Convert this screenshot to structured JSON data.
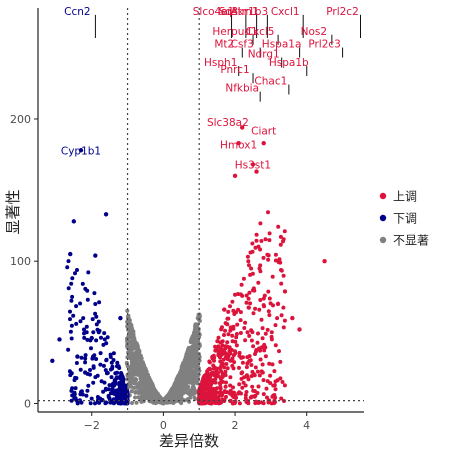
{
  "chart_data": {
    "type": "scatter",
    "title": "",
    "xlabel": "差异倍数",
    "ylabel": "显著性",
    "xlim": [
      -3.5,
      5.6
    ],
    "ylim": [
      -6,
      278
    ],
    "x_ticks": [
      -2,
      0,
      2,
      4
    ],
    "y_ticks": [
      0,
      100,
      200
    ],
    "grid": false,
    "reference_lines": {
      "vertical": [
        -1,
        1
      ],
      "horizontal": [
        2
      ]
    },
    "legend_position": "right",
    "series": [
      {
        "name": "上调",
        "color": "#dc143c",
        "points": [
          [
            2.2,
            194
          ],
          [
            2.8,
            183
          ],
          [
            2.1,
            183
          ],
          [
            2.5,
            168
          ],
          [
            2.6,
            163
          ],
          [
            2.0,
            160
          ],
          [
            4.5,
            100
          ],
          [
            3.2,
            70
          ],
          [
            3.6,
            60
          ],
          [
            3.8,
            52
          ],
          [
            1.7,
            66
          ]
        ]
      },
      {
        "name": "下调",
        "color": "#00008b",
        "points": [
          [
            -2.3,
            178
          ],
          [
            -1.6,
            133
          ],
          [
            -2.5,
            128
          ],
          [
            -2.6,
            105
          ],
          [
            -1.9,
            104
          ],
          [
            -2.9,
            45
          ],
          [
            -2.4,
            33
          ],
          [
            -3.1,
            30
          ],
          [
            -2.0,
            46
          ],
          [
            -1.2,
            60
          ]
        ]
      },
      {
        "name": "不显著",
        "color": "#808080",
        "points": []
      }
    ],
    "labeled_genes": [
      {
        "gene": "Ccn2",
        "x": -2.4,
        "y": 276,
        "color": "#00008b"
      },
      {
        "gene": "Cyp1b1",
        "x": -2.3,
        "y": 178,
        "color": "#00008b"
      },
      {
        "gene": "Slco4a1",
        "x": 1.4,
        "y": 276,
        "color": "#dc143c"
      },
      {
        "gene": "Ier3",
        "x": 1.8,
        "y": 276,
        "color": "#dc143c"
      },
      {
        "gene": "Sqstm1",
        "x": 2.1,
        "y": 276,
        "color": "#dc143c"
      },
      {
        "gene": "Akr1b3",
        "x": 2.4,
        "y": 276,
        "color": "#dc143c"
      },
      {
        "gene": "Cxcl1",
        "x": 3.4,
        "y": 276,
        "color": "#dc143c"
      },
      {
        "gene": "Prl2c2",
        "x": 5.0,
        "y": 276,
        "color": "#dc143c"
      },
      {
        "gene": "Herpud1",
        "x": 2.0,
        "y": 262,
        "color": "#dc143c"
      },
      {
        "gene": "Cxcl5",
        "x": 2.7,
        "y": 262,
        "color": "#dc143c"
      },
      {
        "gene": "Nos2",
        "x": 4.2,
        "y": 262,
        "color": "#dc143c"
      },
      {
        "gene": "Mt2",
        "x": 1.7,
        "y": 253,
        "color": "#dc143c"
      },
      {
        "gene": "Csf3",
        "x": 2.2,
        "y": 253,
        "color": "#dc143c"
      },
      {
        "gene": "Hspa1a",
        "x": 3.3,
        "y": 253,
        "color": "#dc143c"
      },
      {
        "gene": "Prl2c3",
        "x": 4.5,
        "y": 253,
        "color": "#dc143c"
      },
      {
        "gene": "Ndrg1",
        "x": 2.8,
        "y": 246,
        "color": "#dc143c"
      },
      {
        "gene": "Hsph1",
        "x": 1.6,
        "y": 240,
        "color": "#dc143c"
      },
      {
        "gene": "Pnrc1",
        "x": 2.0,
        "y": 235,
        "color": "#dc143c"
      },
      {
        "gene": "Hspa1b",
        "x": 3.5,
        "y": 240,
        "color": "#dc143c"
      },
      {
        "gene": "Chac1",
        "x": 3.0,
        "y": 227,
        "color": "#dc143c"
      },
      {
        "gene": "Nfkbia",
        "x": 2.2,
        "y": 222,
        "color": "#dc143c"
      },
      {
        "gene": "Slc38a2",
        "x": 1.8,
        "y": 198,
        "color": "#dc143c"
      },
      {
        "gene": "Ciart",
        "x": 2.8,
        "y": 192,
        "color": "#dc143c"
      },
      {
        "gene": "Hmox1",
        "x": 2.1,
        "y": 182,
        "color": "#dc143c"
      },
      {
        "gene": "Hs3st1",
        "x": 2.5,
        "y": 168,
        "color": "#dc143c"
      }
    ]
  }
}
